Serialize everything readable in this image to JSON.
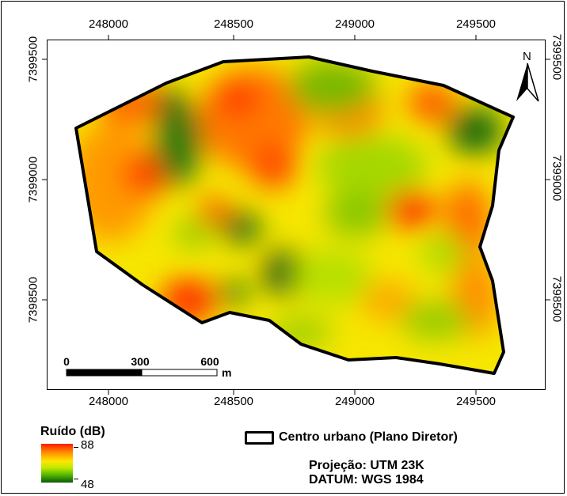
{
  "map": {
    "x_ticks": [
      "248000",
      "248500",
      "249000",
      "249500"
    ],
    "y_ticks": [
      "7399500",
      "7399000",
      "7398500"
    ],
    "north_label": "N",
    "scale_bar": {
      "labels": [
        "0",
        "300",
        "600"
      ],
      "unit": "m"
    }
  },
  "legend": {
    "title": "Ruído (dB)",
    "max": "88",
    "min": "48",
    "colors": [
      "#ff1a00",
      "#ff8c00",
      "#ffe600",
      "#bfe800",
      "#55b800",
      "#0a5a0a"
    ],
    "boundary_label": "Centro urbano (Plano Diretor)"
  },
  "info": {
    "projection": "Projeção: UTM 23K",
    "datum": "DATUM: WGS 1984"
  }
}
